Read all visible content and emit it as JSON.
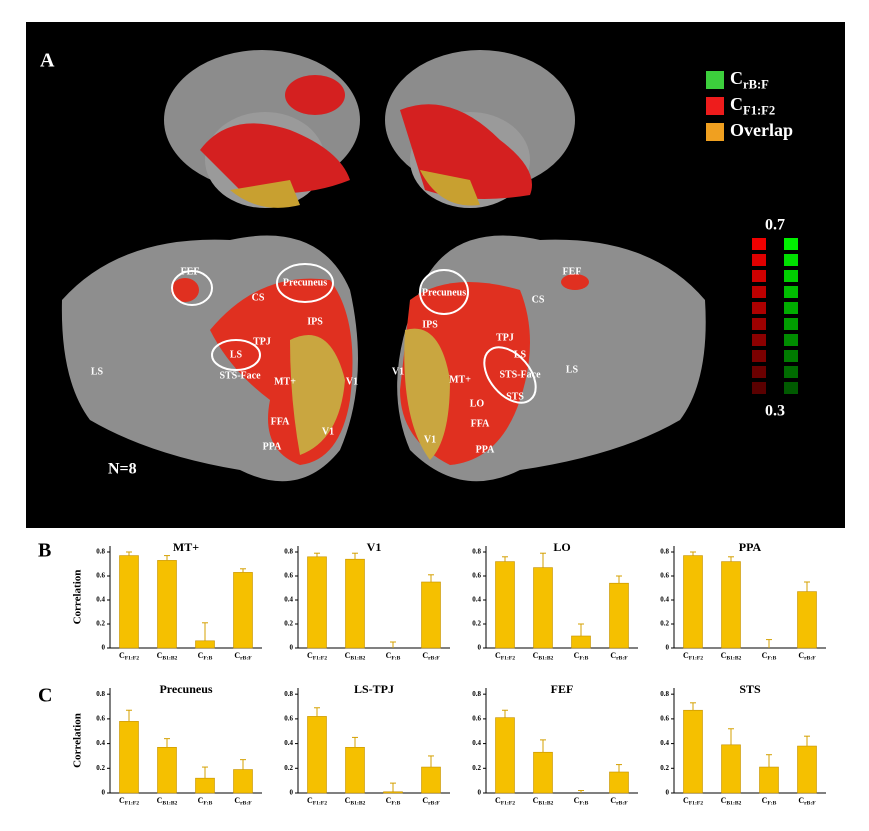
{
  "panel_a": {
    "label": "A",
    "legend": [
      {
        "name": "CrB:F",
        "color": "#3ccf3c"
      },
      {
        "name": "CF1:F2",
        "color": "#ee1c1c"
      },
      {
        "name": "Overlap",
        "color": "#f0a020"
      }
    ],
    "colorbar": {
      "max": 0.7,
      "min": 0.3
    },
    "n_label": "N=8",
    "regions": [
      "FEF",
      "Precuneus",
      "CS",
      "IPS",
      "TPJ",
      "LS",
      "STS-Face",
      "LS",
      "MT+",
      "V1",
      "FFA",
      "PPA",
      "V1",
      "FEF",
      "Precuneus",
      "CS",
      "IPS",
      "TPJ",
      "LS",
      "STS-Face",
      "STS",
      "LS",
      "V1",
      "MT+",
      "LO",
      "FFA",
      "V1",
      "PPA"
    ]
  },
  "panel_b_label": "B",
  "panel_c_label": "C",
  "chart_data": [
    {
      "type": "bar",
      "title": "MT+",
      "ylabel": "Correlation",
      "categories": [
        "CF1:F2",
        "CB1:B2",
        "CF:B",
        "CrB:F"
      ],
      "values": [
        0.77,
        0.73,
        0.06,
        0.63
      ],
      "errors": [
        0.03,
        0.04,
        0.15,
        0.03
      ],
      "color": "#f5c000",
      "ylim": [
        0,
        0.85
      ],
      "yticks": [
        0,
        0.2,
        0.4,
        0.6,
        0.8
      ]
    },
    {
      "type": "bar",
      "title": "V1",
      "categories": [
        "CF1:F2",
        "CB1:B2",
        "CF:B",
        "CrB:F"
      ],
      "values": [
        0.76,
        0.74,
        0,
        0.55
      ],
      "errors": [
        0.03,
        0.05,
        0.05,
        0.06
      ],
      "color": "#f5c000",
      "ylim": [
        0,
        0.85
      ],
      "yticks": [
        0,
        0.2,
        0.4,
        0.6,
        0.8
      ]
    },
    {
      "type": "bar",
      "title": "LO",
      "categories": [
        "CF1:F2",
        "CB1:B2",
        "CF:B",
        "CrB:F"
      ],
      "values": [
        0.72,
        0.67,
        0.1,
        0.54
      ],
      "errors": [
        0.04,
        0.12,
        0.1,
        0.06
      ],
      "color": "#f5c000",
      "ylim": [
        0,
        0.85
      ],
      "yticks": [
        0,
        0.2,
        0.4,
        0.6,
        0.8
      ]
    },
    {
      "type": "bar",
      "title": "PPA",
      "categories": [
        "CF1:F2",
        "CB1:B2",
        "CF:B",
        "CrB:F"
      ],
      "values": [
        0.77,
        0.72,
        0,
        0.47
      ],
      "errors": [
        0.03,
        0.04,
        0.07,
        0.08
      ],
      "color": "#f5c000",
      "ylim": [
        0,
        0.85
      ],
      "yticks": [
        0,
        0.2,
        0.4,
        0.6,
        0.8
      ]
    },
    {
      "type": "bar",
      "title": "Precuneus",
      "ylabel": "Correlation",
      "categories": [
        "CF1:F2",
        "CB1:B2",
        "CF:B",
        "CrB:F"
      ],
      "values": [
        0.58,
        0.37,
        0.12,
        0.19
      ],
      "errors": [
        0.09,
        0.07,
        0.09,
        0.08
      ],
      "color": "#f5c000",
      "ylim": [
        0,
        0.85
      ],
      "yticks": [
        0,
        0.2,
        0.4,
        0.6,
        0.8
      ]
    },
    {
      "type": "bar",
      "title": "LS-TPJ",
      "categories": [
        "CF1:F2",
        "CB1:B2",
        "CF:B",
        "CrB:F"
      ],
      "values": [
        0.62,
        0.37,
        0.01,
        0.21
      ],
      "errors": [
        0.07,
        0.08,
        0.07,
        0.09
      ],
      "color": "#f5c000",
      "ylim": [
        0,
        0.85
      ],
      "yticks": [
        0,
        0.2,
        0.4,
        0.6,
        0.8
      ]
    },
    {
      "type": "bar",
      "title": "FEF",
      "categories": [
        "CF1:F2",
        "CB1:B2",
        "CF:B",
        "CrB:F"
      ],
      "values": [
        0.61,
        0.33,
        0,
        0.17
      ],
      "errors": [
        0.06,
        0.1,
        0.02,
        0.06
      ],
      "color": "#f5c000",
      "ylim": [
        0,
        0.85
      ],
      "yticks": [
        0,
        0.2,
        0.4,
        0.6,
        0.8
      ]
    },
    {
      "type": "bar",
      "title": "STS",
      "categories": [
        "CF1:F2",
        "CB1:B2",
        "CF:B",
        "CrB:F"
      ],
      "values": [
        0.67,
        0.39,
        0.21,
        0.38
      ],
      "errors": [
        0.06,
        0.13,
        0.1,
        0.08
      ],
      "color": "#f5c000",
      "ylim": [
        0,
        0.85
      ],
      "yticks": [
        0,
        0.2,
        0.4,
        0.6,
        0.8
      ]
    }
  ]
}
